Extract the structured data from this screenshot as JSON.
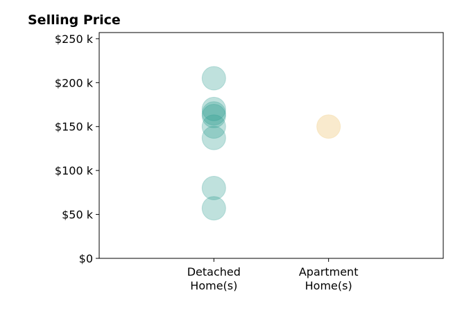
{
  "chart_data": {
    "type": "scatter",
    "title": "Selling Price",
    "xlabel": "",
    "ylabel": "",
    "categories": [
      [
        "Detached",
        "Home(s)"
      ],
      [
        "Apartment",
        "Home(s)"
      ]
    ],
    "xlim": [
      0,
      3
    ],
    "ylim": [
      0,
      257000
    ],
    "yticks": [
      0,
      50000,
      100000,
      150000,
      200000,
      250000
    ],
    "yticklabels": [
      "$0",
      "$50 k",
      "$100 k",
      "$150 k",
      "$200 k",
      "$250 k"
    ],
    "grid": false,
    "legend": "none",
    "series": [
      {
        "category_index": 0,
        "x": 1,
        "values": [
          205000,
          170000,
          165000,
          162000,
          150000,
          137000,
          80000,
          57000
        ],
        "color": "#2a9d8f",
        "opacity": 0.3
      },
      {
        "category_index": 1,
        "x": 2,
        "values": [
          150000
        ],
        "color": "#f4d69c",
        "opacity": 0.5
      }
    ]
  }
}
